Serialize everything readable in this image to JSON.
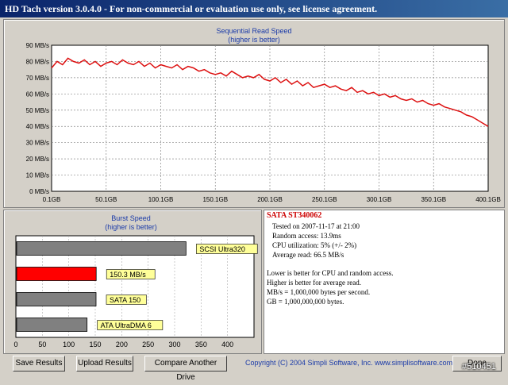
{
  "window": {
    "title": "HD Tach version 3.0.4.0  - For non-commercial or evaluation use only, see license agreement."
  },
  "colors": {
    "read_line": "#dd1111",
    "burst_highlight": "#ff0000",
    "burst_bar": "#808080",
    "label_bg": "#ffff99",
    "title_text": "#1a3aa8"
  },
  "read_chart": {
    "title": "Sequential Read Speed",
    "subtitle": "(higher is better)"
  },
  "burst_chart": {
    "title": "Burst Speed",
    "subtitle": "(higher is better)"
  },
  "chart_data": [
    {
      "type": "line",
      "title": "Sequential Read Speed",
      "subtitle": "(higher is better)",
      "x_tick_labels": [
        "0.1GB",
        "50.1GB",
        "100.1GB",
        "150.1GB",
        "200.1GB",
        "250.1GB",
        "300.1GB",
        "350.1GB",
        "400.1GB"
      ],
      "y_tick_labels": [
        "0 MB/s",
        "10 MB/s",
        "20 MB/s",
        "30 MB/s",
        "40 MB/s",
        "50 MB/s",
        "60 MB/s",
        "70 MB/s",
        "80 MB/s",
        "90 MB/s"
      ],
      "xlim": [
        0.1,
        400.1
      ],
      "ylim": [
        0,
        90
      ],
      "grid": true,
      "series": [
        {
          "x": [
            0,
            5,
            10,
            15,
            20,
            25,
            30,
            35,
            40,
            45,
            50,
            55,
            60,
            65,
            70,
            75,
            80,
            85,
            90,
            95,
            100,
            105,
            110,
            115,
            120,
            125,
            130,
            135,
            140,
            145,
            150,
            155,
            160,
            165,
            170,
            175,
            180,
            185,
            190,
            195,
            200,
            205,
            210,
            215,
            220,
            225,
            230,
            235,
            240,
            245,
            250,
            255,
            260,
            265,
            270,
            275,
            280,
            285,
            290,
            295,
            300,
            305,
            310,
            315,
            320,
            325,
            330,
            335,
            340,
            345,
            350,
            355,
            360,
            365,
            370,
            375,
            380,
            385,
            390,
            395,
            400
          ],
          "values": [
            76,
            80,
            78,
            82,
            80,
            79,
            81,
            78,
            80,
            77,
            79,
            80,
            78,
            81,
            79,
            78,
            80,
            77,
            79,
            76,
            78,
            77,
            76,
            78,
            75,
            77,
            76,
            74,
            75,
            73,
            72,
            73,
            71,
            74,
            72,
            70,
            71,
            70,
            72,
            69,
            68,
            70,
            67,
            69,
            66,
            68,
            65,
            67,
            64,
            65,
            66,
            64,
            65,
            63,
            62,
            64,
            61,
            62,
            60,
            61,
            59,
            60,
            58,
            59,
            57,
            56,
            57,
            55,
            56,
            54,
            53,
            54,
            52,
            51,
            50,
            49,
            47,
            46,
            44,
            42,
            40
          ]
        }
      ]
    },
    {
      "type": "bar",
      "title": "Burst Speed",
      "subtitle": "(higher is better)",
      "orientation": "horizontal",
      "x_tick_labels": [
        "0",
        "50",
        "100",
        "150",
        "200",
        "250",
        "300",
        "350",
        "400"
      ],
      "xlim": [
        0,
        450
      ],
      "categories": [
        "SCSI Ultra320",
        "150.3 MB/s",
        "SATA 150",
        "ATA UltraDMA 6"
      ],
      "values": [
        320,
        150.3,
        150,
        133
      ],
      "highlight_index": 1
    }
  ],
  "info": {
    "drive": "SATA ST340062",
    "tested_on": "Tested on 2007-11-17 at 21:00",
    "random_access": "Random access: 13.9ms",
    "cpu": "CPU utilization: 5% (+/- 2%)",
    "average_read": "Average read: 66.5 MB/s",
    "note1": "Lower is better for CPU and random access.",
    "note2": "Higher is better for average read.",
    "note3": "MB/s = 1,000,000 bytes per second.",
    "note4": "GB = 1,000,000,000 bytes."
  },
  "buttons": {
    "save": "Save Results",
    "upload": "Upload Results",
    "compare": "Compare Another Drive",
    "done": "Done"
  },
  "footer": {
    "copyright": "Copyright (C) 2004 Simpli Software, Inc. www.simplisoftware.com"
  },
  "watermark": "#510451"
}
